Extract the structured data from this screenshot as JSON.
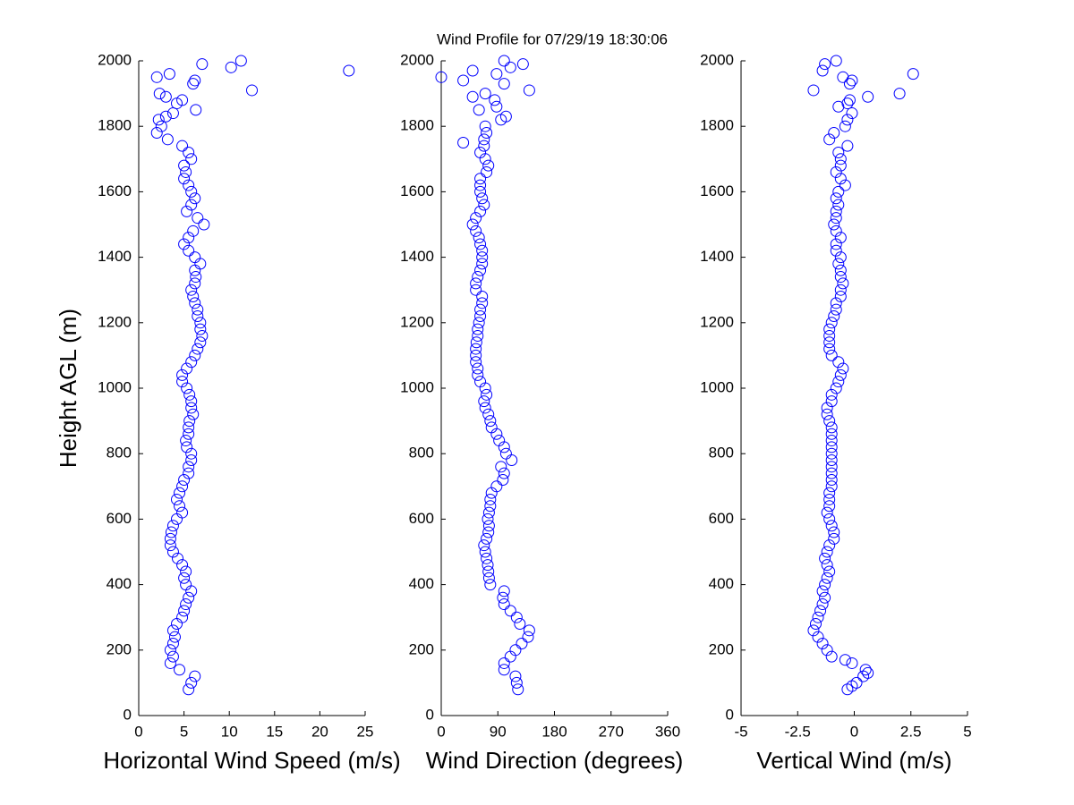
{
  "chart_data": [
    {
      "type": "scatter",
      "title": "Wind Profile for  07/29/19 18:30:06",
      "xlabel": "Horizontal Wind Speed (m/s)",
      "ylabel": "Height AGL (m)",
      "color": "#0000ff",
      "xlim": [
        0,
        25
      ],
      "xticks": [
        0,
        5,
        10,
        15,
        20,
        25
      ],
      "ylim": [
        0,
        2000
      ],
      "yticks": [
        0,
        200,
        400,
        600,
        800,
        1000,
        1200,
        1400,
        1600,
        1800,
        2000
      ],
      "x": [
        5.5,
        5.8,
        6.2,
        4.5,
        3.5,
        3.8,
        3.5,
        3.8,
        4.0,
        3.8,
        4.2,
        4.8,
        5.0,
        5.2,
        5.5,
        5.8,
        5.2,
        5.0,
        5.2,
        4.8,
        4.3,
        3.8,
        3.5,
        3.5,
        3.6,
        3.8,
        4.2,
        4.8,
        4.5,
        4.2,
        4.5,
        4.8,
        5.0,
        5.5,
        5.5,
        5.8,
        5.8,
        5.3,
        5.2,
        5.5,
        5.5,
        5.6,
        6.0,
        5.8,
        5.8,
        5.6,
        5.3,
        4.8,
        4.8,
        5.3,
        5.8,
        6.2,
        6.5,
        6.8,
        7.0,
        6.8,
        6.8,
        6.5,
        6.5,
        6.2,
        6.0,
        5.8,
        6.2,
        6.3,
        6.2,
        6.8,
        6.2,
        5.5,
        5.0,
        5.5,
        6.0,
        7.2,
        6.5,
        5.3,
        5.8,
        6.2,
        5.8,
        5.5,
        5.0,
        5.2,
        5.0,
        5.8,
        5.5,
        4.8,
        3.2,
        2.0,
        2.5,
        2.2,
        3.0,
        3.8,
        6.3,
        4.2,
        4.8,
        3.0,
        2.3,
        12.5,
        6.0,
        6.2,
        2.0,
        3.4,
        23.2,
        10.2,
        7.0,
        11.3
      ],
      "y": [
        80,
        100,
        120,
        140,
        160,
        180,
        200,
        220,
        240,
        260,
        280,
        300,
        320,
        340,
        360,
        380,
        400,
        420,
        440,
        460,
        480,
        500,
        520,
        540,
        560,
        580,
        600,
        620,
        640,
        660,
        680,
        700,
        720,
        740,
        760,
        780,
        800,
        820,
        840,
        860,
        880,
        900,
        920,
        940,
        960,
        980,
        1000,
        1020,
        1040,
        1060,
        1080,
        1100,
        1120,
        1140,
        1160,
        1180,
        1200,
        1220,
        1240,
        1260,
        1280,
        1300,
        1320,
        1340,
        1360,
        1380,
        1400,
        1420,
        1440,
        1460,
        1480,
        1500,
        1520,
        1540,
        1560,
        1580,
        1600,
        1620,
        1640,
        1660,
        1680,
        1700,
        1720,
        1740,
        1760,
        1780,
        1800,
        1820,
        1830,
        1840,
        1850,
        1870,
        1880,
        1890,
        1900,
        1910,
        1930,
        1940,
        1950,
        1960,
        1970,
        1980,
        1990,
        2000
      ]
    },
    {
      "type": "scatter",
      "xlabel": "Wind Direction (degrees)",
      "color": "#0000ff",
      "xlim": [
        0,
        360
      ],
      "xticks": [
        0,
        90,
        180,
        270,
        360
      ],
      "ylim": [
        0,
        2000
      ],
      "yticks": [
        0,
        200,
        400,
        600,
        800,
        1000,
        1200,
        1400,
        1600,
        1800,
        2000
      ],
      "x": [
        122,
        120,
        118,
        100,
        100,
        110,
        118,
        128,
        138,
        140,
        125,
        120,
        110,
        100,
        98,
        100,
        78,
        76,
        75,
        74,
        72,
        70,
        68,
        72,
        75,
        76,
        74,
        76,
        78,
        78,
        80,
        88,
        98,
        100,
        95,
        112,
        103,
        100,
        92,
        88,
        80,
        78,
        75,
        70,
        68,
        72,
        70,
        62,
        58,
        58,
        55,
        55,
        55,
        56,
        58,
        58,
        60,
        62,
        62,
        65,
        65,
        55,
        55,
        58,
        62,
        65,
        65,
        65,
        62,
        60,
        55,
        50,
        55,
        62,
        68,
        65,
        62,
        62,
        62,
        72,
        75,
        70,
        62,
        68,
        68,
        35,
        72,
        70,
        95,
        103,
        60,
        88,
        85,
        50,
        70,
        140,
        100,
        35,
        0,
        88,
        50,
        110,
        130,
        100
      ],
      "y": [
        80,
        100,
        120,
        140,
        160,
        180,
        200,
        220,
        240,
        260,
        280,
        300,
        320,
        340,
        360,
        380,
        400,
        420,
        440,
        460,
        480,
        500,
        520,
        540,
        560,
        580,
        600,
        620,
        640,
        660,
        680,
        700,
        720,
        740,
        760,
        780,
        800,
        820,
        840,
        860,
        880,
        900,
        920,
        940,
        960,
        980,
        1000,
        1020,
        1040,
        1060,
        1080,
        1100,
        1120,
        1140,
        1160,
        1180,
        1200,
        1220,
        1240,
        1260,
        1280,
        1300,
        1320,
        1340,
        1360,
        1380,
        1400,
        1420,
        1440,
        1460,
        1480,
        1500,
        1520,
        1540,
        1560,
        1580,
        1600,
        1620,
        1640,
        1660,
        1680,
        1700,
        1720,
        1740,
        1760,
        1750,
        1780,
        1800,
        1820,
        1830,
        1850,
        1860,
        1880,
        1890,
        1900,
        1910,
        1930,
        1940,
        1950,
        1960,
        1970,
        1980,
        1990,
        2000
      ]
    },
    {
      "type": "scatter",
      "xlabel": "Vertical Wind (m/s)",
      "color": "#0000ff",
      "xlim": [
        -5,
        5
      ],
      "xticks": [
        -5,
        -2.5,
        0,
        2.5,
        5
      ],
      "ylim": [
        0,
        2000
      ],
      "yticks": [
        0,
        200,
        400,
        600,
        800,
        1000,
        1200,
        1400,
        1600,
        1800,
        2000
      ],
      "x": [
        -0.3,
        -0.1,
        0.1,
        0.4,
        0.6,
        0.5,
        -0.1,
        -0.4,
        -1.0,
        -1.2,
        -1.4,
        -1.6,
        -1.8,
        -1.7,
        -1.6,
        -1.5,
        -1.4,
        -1.3,
        -1.4,
        -1.3,
        -1.2,
        -1.1,
        -1.2,
        -1.3,
        -1.2,
        -1.1,
        -0.9,
        -0.9,
        -1.0,
        -1.1,
        -1.2,
        -1.1,
        -1.1,
        -1.1,
        -1.0,
        -1.0,
        -1.0,
        -1.0,
        -1.0,
        -1.0,
        -1.0,
        -1.0,
        -1.0,
        -1.0,
        -1.1,
        -1.2,
        -1.2,
        -1.0,
        -1.0,
        -0.8,
        -0.7,
        -0.6,
        -0.5,
        -0.7,
        -1.0,
        -1.1,
        -1.1,
        -1.1,
        -1.1,
        -1.0,
        -0.9,
        -0.8,
        -0.8,
        -0.6,
        -0.6,
        -0.5,
        -0.6,
        -0.6,
        -0.7,
        -0.6,
        -0.8,
        -0.8,
        -0.6,
        -0.8,
        -0.9,
        -0.8,
        -0.8,
        -0.7,
        -0.8,
        -0.7,
        -0.4,
        -0.6,
        -0.8,
        -0.6,
        -0.6,
        -0.7,
        -0.3,
        -1.1,
        -0.9,
        -0.4,
        -0.3,
        -0.1,
        -0.7,
        -0.3,
        -0.2,
        0.6,
        2.0,
        -1.8,
        -0.2,
        -0.1,
        -0.5,
        2.6,
        -1.4,
        -1.3,
        -0.8
      ],
      "y": [
        80,
        90,
        100,
        120,
        130,
        140,
        160,
        170,
        180,
        200,
        220,
        240,
        260,
        280,
        300,
        320,
        340,
        360,
        380,
        400,
        420,
        440,
        460,
        480,
        500,
        520,
        540,
        560,
        580,
        600,
        620,
        640,
        660,
        680,
        700,
        720,
        740,
        760,
        780,
        800,
        820,
        840,
        860,
        880,
        900,
        920,
        940,
        960,
        980,
        1000,
        1020,
        1040,
        1060,
        1080,
        1100,
        1120,
        1140,
        1160,
        1180,
        1200,
        1220,
        1240,
        1260,
        1280,
        1300,
        1320,
        1340,
        1360,
        1380,
        1400,
        1420,
        1440,
        1460,
        1480,
        1500,
        1520,
        1540,
        1560,
        1580,
        1600,
        1620,
        1640,
        1660,
        1680,
        1700,
        1720,
        1740,
        1760,
        1780,
        1800,
        1820,
        1840,
        1860,
        1870,
        1880,
        1890,
        1900,
        1910,
        1930,
        1940,
        1950,
        1960,
        1970,
        1990,
        2000
      ]
    }
  ]
}
